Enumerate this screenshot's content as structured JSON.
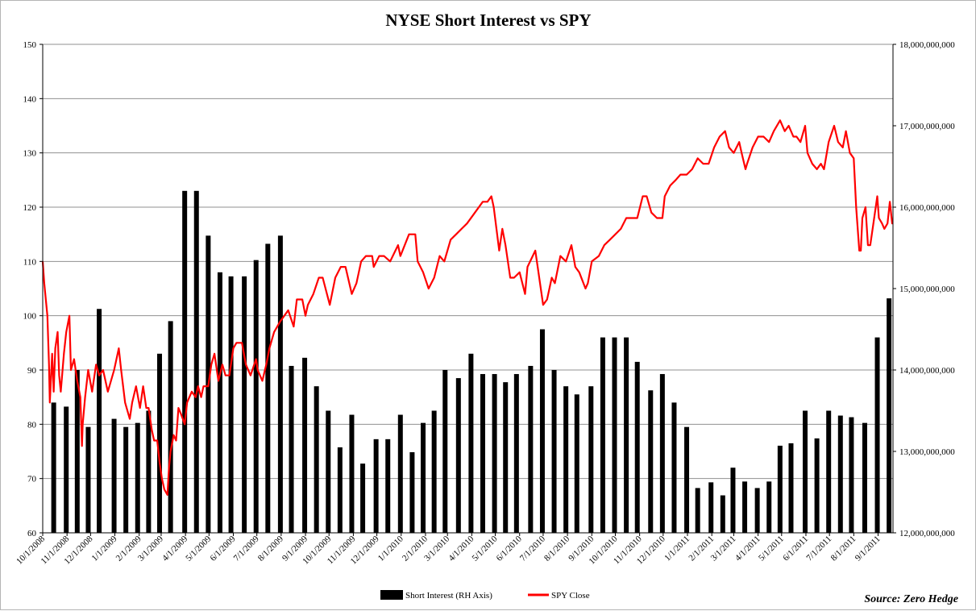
{
  "chart_data": {
    "type": "bar+line",
    "title": "NYSE Short Interest vs SPY",
    "source": "Source: Zero Hedge",
    "legend": {
      "placement": "bottom-center",
      "entries": [
        {
          "label": "Short Interest (RH Axis)",
          "color": "#000000",
          "kind": "bar"
        },
        {
          "label": "SPY Close",
          "color": "#ff0000",
          "kind": "line"
        }
      ]
    },
    "left_axis": {
      "min": 60,
      "max": 150,
      "ticks": [
        "60",
        "70",
        "80",
        "90",
        "100",
        "110",
        "120",
        "130",
        "140",
        "150"
      ]
    },
    "right_axis": {
      "min": 12000000000,
      "max": 18000000000,
      "ticks": [
        "12,000,000,000",
        "13,000,000,000",
        "14,000,000,000",
        "15,000,000,000",
        "16,000,000,000",
        "17,000,000,000",
        "18,000,000,000"
      ]
    },
    "x_axis": {
      "start": "10/1/2008",
      "end": "9/20/2011",
      "tick_labels": [
        "10/1/2008",
        "11/1/2008",
        "12/1/2008",
        "1/1/2009",
        "2/1/2009",
        "3/1/2009",
        "4/1/2009",
        "5/1/2009",
        "6/1/2009",
        "7/1/2009",
        "8/1/2009",
        "9/1/2009",
        "10/1/2009",
        "11/1/2009",
        "12/1/2009",
        "1/1/2010",
        "2/1/2010",
        "3/1/2010",
        "4/1/2010",
        "5/1/2010",
        "6/1/2010",
        "7/1/2010",
        "8/1/2010",
        "9/1/2010",
        "10/1/2010",
        "11/1/2010",
        "12/1/2010",
        "1/1/2011",
        "2/1/2011",
        "3/1/2011",
        "4/1/2011",
        "5/1/2011",
        "6/1/2011",
        "7/1/2011",
        "8/1/2011",
        "9/1/2011"
      ]
    },
    "grid": "horizontal",
    "short_interest": {
      "name": "Short Interest (RH Axis)",
      "points": [
        [
          "10/15/2008",
          13600000000
        ],
        [
          "10/31/2008",
          13550000000
        ],
        [
          "11/14/2008",
          14000000000
        ],
        [
          "11/28/2008",
          13300000000
        ],
        [
          "12/12/2008",
          14750000000
        ],
        [
          "12/31/2008",
          13400000000
        ],
        [
          "1/15/2009",
          13300000000
        ],
        [
          "1/30/2009",
          13350000000
        ],
        [
          "2/13/2009",
          13500000000
        ],
        [
          "2/27/2009",
          14200000000
        ],
        [
          "3/13/2009",
          14600000000
        ],
        [
          "3/31/2009",
          16200000000
        ],
        [
          "4/15/2009",
          16200000000
        ],
        [
          "4/30/2009",
          15650000000
        ],
        [
          "5/15/2009",
          15200000000
        ],
        [
          "5/29/2009",
          15150000000
        ],
        [
          "6/15/2009",
          15150000000
        ],
        [
          "6/30/2009",
          15350000000
        ],
        [
          "7/15/2009",
          15550000000
        ],
        [
          "7/31/2009",
          15650000000
        ],
        [
          "8/14/2009",
          14050000000
        ],
        [
          "8/31/2009",
          14150000000
        ],
        [
          "9/15/2009",
          13800000000
        ],
        [
          "9/30/2009",
          13500000000
        ],
        [
          "10/15/2009",
          13050000000
        ],
        [
          "10/30/2009",
          13450000000
        ],
        [
          "11/13/2009",
          12850000000
        ],
        [
          "11/30/2009",
          13150000000
        ],
        [
          "12/15/2009",
          13150000000
        ],
        [
          "12/31/2009",
          13450000000
        ],
        [
          "1/15/2010",
          12990000000
        ],
        [
          "1/29/2010",
          13350000000
        ],
        [
          "2/12/2010",
          13500000000
        ],
        [
          "2/26/2010",
          14000000000
        ],
        [
          "3/15/2010",
          13900000000
        ],
        [
          "3/31/2010",
          14200000000
        ],
        [
          "4/15/2010",
          13950000000
        ],
        [
          "4/30/2010",
          13950000000
        ],
        [
          "5/14/2010",
          13850000000
        ],
        [
          "5/28/2010",
          13950000000
        ],
        [
          "6/15/2010",
          14050000000
        ],
        [
          "6/30/2010",
          14500000000
        ],
        [
          "7/15/2010",
          14000000000
        ],
        [
          "7/30/2010",
          13800000000
        ],
        [
          "8/13/2010",
          13700000000
        ],
        [
          "8/31/2010",
          13800000000
        ],
        [
          "9/15/2010",
          14400000000
        ],
        [
          "9/30/2010",
          14400000000
        ],
        [
          "10/15/2010",
          14400000000
        ],
        [
          "10/29/2010",
          14100000000
        ],
        [
          "11/15/2010",
          13750000000
        ],
        [
          "11/30/2010",
          13950000000
        ],
        [
          "12/15/2010",
          13600000000
        ],
        [
          "12/31/2010",
          13300000000
        ],
        [
          "1/14/2011",
          12550000000
        ],
        [
          "1/31/2011",
          12620000000
        ],
        [
          "2/15/2011",
          12460000000
        ],
        [
          "2/28/2011",
          12800000000
        ],
        [
          "3/15/2011",
          12630000000
        ],
        [
          "3/31/2011",
          12550000000
        ],
        [
          "4/15/2011",
          12630000000
        ],
        [
          "4/29/2011",
          13070000000
        ],
        [
          "5/13/2011",
          13100000000
        ],
        [
          "5/31/2011",
          13500000000
        ],
        [
          "6/15/2011",
          13160000000
        ],
        [
          "6/30/2011",
          13500000000
        ],
        [
          "7/15/2011",
          13440000000
        ],
        [
          "7/29/2011",
          13420000000
        ],
        [
          "8/15/2011",
          13350000000
        ],
        [
          "8/31/2011",
          14400000000
        ],
        [
          "9/15/2011",
          14880000000
        ]
      ]
    },
    "spy_close": {
      "name": "SPY Close",
      "points": [
        [
          "10/1/2008",
          110
        ],
        [
          "10/3/2008",
          106
        ],
        [
          "10/7/2008",
          100
        ],
        [
          "10/9/2008",
          91
        ],
        [
          "10/10/2008",
          84
        ],
        [
          "10/13/2008",
          93
        ],
        [
          "10/15/2008",
          86
        ],
        [
          "10/17/2008",
          94
        ],
        [
          "10/20/2008",
          97
        ],
        [
          "10/22/2008",
          89
        ],
        [
          "10/24/2008",
          86
        ],
        [
          "10/28/2008",
          93
        ],
        [
          "10/31/2008",
          97
        ],
        [
          "11/4/2008",
          100
        ],
        [
          "11/6/2008",
          90
        ],
        [
          "11/10/2008",
          92
        ],
        [
          "11/14/2008",
          88
        ],
        [
          "11/18/2008",
          85
        ],
        [
          "11/20/2008",
          76
        ],
        [
          "11/21/2008",
          80
        ],
        [
          "11/24/2008",
          85
        ],
        [
          "11/28/2008",
          90
        ],
        [
          "12/3/2008",
          86
        ],
        [
          "12/8/2008",
          91
        ],
        [
          "12/12/2008",
          89
        ],
        [
          "12/17/2008",
          90
        ],
        [
          "12/23/2008",
          86
        ],
        [
          "12/31/2008",
          90
        ],
        [
          "1/6/2009",
          94
        ],
        [
          "1/9/2009",
          90
        ],
        [
          "1/14/2009",
          84
        ],
        [
          "1/20/2009",
          81
        ],
        [
          "1/23/2009",
          84
        ],
        [
          "1/28/2009",
          87
        ],
        [
          "2/2/2009",
          83
        ],
        [
          "2/6/2009",
          87
        ],
        [
          "2/10/2009",
          83
        ],
        [
          "2/13/2009",
          83
        ],
        [
          "2/17/2009",
          79
        ],
        [
          "2/20/2009",
          77
        ],
        [
          "2/24/2009",
          77
        ],
        [
          "2/27/2009",
          73
        ],
        [
          "3/2/2009",
          70
        ],
        [
          "3/5/2009",
          68
        ],
        [
          "3/9/2009",
          67
        ],
        [
          "3/11/2009",
          72
        ],
        [
          "3/13/2009",
          75
        ],
        [
          "3/17/2009",
          78
        ],
        [
          "3/20/2009",
          77
        ],
        [
          "3/23/2009",
          83
        ],
        [
          "3/26/2009",
          82
        ],
        [
          "3/31/2009",
          80
        ],
        [
          "4/3/2009",
          84
        ],
        [
          "4/9/2009",
          86
        ],
        [
          "4/14/2009",
          85
        ],
        [
          "4/17/2009",
          87
        ],
        [
          "4/21/2009",
          85
        ],
        [
          "4/24/2009",
          87
        ],
        [
          "4/30/2009",
          87
        ],
        [
          "5/4/2009",
          91
        ],
        [
          "5/8/2009",
          93
        ],
        [
          "5/13/2009",
          88
        ],
        [
          "5/18/2009",
          91
        ],
        [
          "5/22/2009",
          89
        ],
        [
          "5/27/2009",
          89
        ],
        [
          "6/1/2009",
          94
        ],
        [
          "6/5/2009",
          95
        ],
        [
          "6/9/2009",
          95
        ],
        [
          "6/12/2009",
          95
        ],
        [
          "6/17/2009",
          91
        ],
        [
          "6/23/2009",
          89
        ],
        [
          "6/30/2009",
          92
        ],
        [
          "7/2/2009",
          90
        ],
        [
          "7/8/2009",
          88
        ],
        [
          "7/13/2009",
          91
        ],
        [
          "7/17/2009",
          94
        ],
        [
          "7/23/2009",
          97
        ],
        [
          "7/31/2009",
          99
        ],
        [
          "8/5/2009",
          100
        ],
        [
          "8/10/2009",
          101
        ],
        [
          "8/17/2009",
          98
        ],
        [
          "8/21/2009",
          103
        ],
        [
          "8/28/2009",
          103
        ],
        [
          "9/1/2009",
          100
        ],
        [
          "9/4/2009",
          102
        ],
        [
          "9/11/2009",
          104
        ],
        [
          "9/18/2009",
          107
        ],
        [
          "9/23/2009",
          107
        ],
        [
          "10/2/2009",
          102
        ],
        [
          "10/9/2009",
          107
        ],
        [
          "10/16/2009",
          109
        ],
        [
          "10/22/2009",
          109
        ],
        [
          "10/30/2009",
          104
        ],
        [
          "11/5/2009",
          106
        ],
        [
          "11/11/2009",
          110
        ],
        [
          "11/17/2009",
          111
        ],
        [
          "11/25/2009",
          111
        ],
        [
          "11/27/2009",
          109
        ],
        [
          "12/4/2009",
          111
        ],
        [
          "12/10/2009",
          111
        ],
        [
          "12/18/2009",
          110
        ],
        [
          "12/28/2009",
          113
        ],
        [
          "12/31/2009",
          111
        ],
        [
          "1/11/2010",
          115
        ],
        [
          "1/19/2010",
          115
        ],
        [
          "1/22/2010",
          110
        ],
        [
          "1/29/2010",
          108
        ],
        [
          "2/5/2010",
          105
        ],
        [
          "2/12/2010",
          107
        ],
        [
          "2/19/2010",
          111
        ],
        [
          "2/25/2010",
          110
        ],
        [
          "3/5/2010",
          114
        ],
        [
          "3/12/2010",
          115
        ],
        [
          "3/19/2010",
          116
        ],
        [
          "3/26/2010",
          117
        ],
        [
          "4/5/2010",
          119
        ],
        [
          "4/15/2010",
          121
        ],
        [
          "4/21/2010",
          121
        ],
        [
          "4/26/2010",
          122
        ],
        [
          "4/29/2010",
          120
        ],
        [
          "5/6/2010",
          112
        ],
        [
          "5/10/2010",
          116
        ],
        [
          "5/14/2010",
          113
        ],
        [
          "5/20/2010",
          107
        ],
        [
          "5/25/2010",
          107
        ],
        [
          "6/1/2010",
          108
        ],
        [
          "6/8/2010",
          104
        ],
        [
          "6/11/2010",
          109
        ],
        [
          "6/21/2010",
          112
        ],
        [
          "6/25/2010",
          108
        ],
        [
          "7/1/2010",
          102
        ],
        [
          "7/6/2010",
          103
        ],
        [
          "7/12/2010",
          107
        ],
        [
          "7/16/2010",
          106
        ],
        [
          "7/23/2010",
          111
        ],
        [
          "7/30/2010",
          110
        ],
        [
          "8/6/2010",
          113
        ],
        [
          "8/11/2010",
          109
        ],
        [
          "8/16/2010",
          108
        ],
        [
          "8/24/2010",
          105
        ],
        [
          "8/27/2010",
          106
        ],
        [
          "9/1/2010",
          110
        ],
        [
          "9/10/2010",
          111
        ],
        [
          "9/17/2010",
          113
        ],
        [
          "9/24/2010",
          114
        ],
        [
          "10/1/2010",
          115
        ],
        [
          "10/8/2010",
          116
        ],
        [
          "10/15/2010",
          118
        ],
        [
          "10/22/2010",
          118
        ],
        [
          "10/29/2010",
          118
        ],
        [
          "11/5/2010",
          122
        ],
        [
          "11/10/2010",
          122
        ],
        [
          "11/16/2010",
          119
        ],
        [
          "11/23/2010",
          118
        ],
        [
          "11/30/2010",
          118
        ],
        [
          "12/3/2010",
          122
        ],
        [
          "12/10/2010",
          124
        ],
        [
          "12/17/2010",
          125
        ],
        [
          "12/23/2010",
          126
        ],
        [
          "12/31/2010",
          126
        ],
        [
          "1/7/2011",
          127
        ],
        [
          "1/14/2011",
          129
        ],
        [
          "1/21/2011",
          128
        ],
        [
          "1/28/2011",
          128
        ],
        [
          "2/4/2011",
          131
        ],
        [
          "2/11/2011",
          133
        ],
        [
          "2/18/2011",
          134
        ],
        [
          "2/23/2011",
          131
        ],
        [
          "3/1/2011",
          130
        ],
        [
          "3/8/2011",
          132
        ],
        [
          "3/11/2011",
          130
        ],
        [
          "3/16/2011",
          127
        ],
        [
          "3/18/2011",
          128
        ],
        [
          "3/25/2011",
          131
        ],
        [
          "4/1/2011",
          133
        ],
        [
          "4/8/2011",
          133
        ],
        [
          "4/15/2011",
          132
        ],
        [
          "4/21/2011",
          134
        ],
        [
          "4/29/2011",
          136
        ],
        [
          "5/5/2011",
          134
        ],
        [
          "5/10/2011",
          135
        ],
        [
          "5/16/2011",
          133
        ],
        [
          "5/20/2011",
          133
        ],
        [
          "5/25/2011",
          132
        ],
        [
          "5/31/2011",
          135
        ],
        [
          "6/3/2011",
          130
        ],
        [
          "6/9/2011",
          128
        ],
        [
          "6/15/2011",
          127
        ],
        [
          "6/20/2011",
          128
        ],
        [
          "6/24/2011",
          127
        ],
        [
          "6/30/2011",
          132
        ],
        [
          "7/7/2011",
          135
        ],
        [
          "7/12/2011",
          132
        ],
        [
          "7/18/2011",
          131
        ],
        [
          "7/22/2011",
          134
        ],
        [
          "7/27/2011",
          130
        ],
        [
          "8/1/2011",
          129
        ],
        [
          "8/4/2011",
          120
        ],
        [
          "8/8/2011",
          112
        ],
        [
          "8/10/2011",
          112
        ],
        [
          "8/12/2011",
          118
        ],
        [
          "8/16/2011",
          120
        ],
        [
          "8/19/2011",
          113
        ],
        [
          "8/22/2011",
          113
        ],
        [
          "8/26/2011",
          117
        ],
        [
          "8/31/2011",
          122
        ],
        [
          "9/2/2011",
          118
        ],
        [
          "9/6/2011",
          117
        ],
        [
          "9/9/2011",
          116
        ],
        [
          "9/13/2011",
          117
        ],
        [
          "9/16/2011",
          121
        ],
        [
          "9/19/2011",
          117
        ],
        [
          "9/20/2011",
          117
        ]
      ]
    }
  }
}
